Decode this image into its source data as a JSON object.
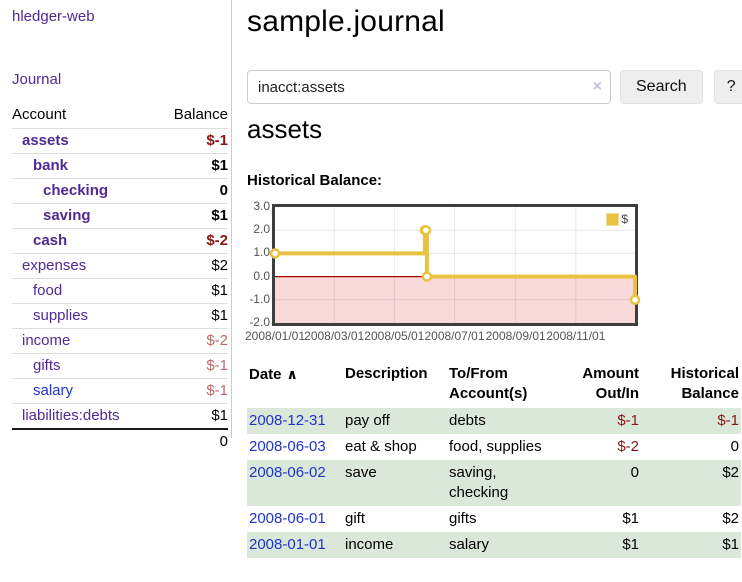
{
  "colors": {
    "link_purple": "#4f2a93",
    "link_blue": "#2233cc",
    "negative_red": "#8b1515",
    "muted_rose": "#bc6a6a",
    "row_stripe_green": "#d9e8d9",
    "chart_line_gold": "#E8C240",
    "chart_negative_pink": "#f9d9d9",
    "chart_zero_line": "#a40000"
  },
  "sidebar": {
    "app_title": "hledger-web",
    "journal_link": "Journal",
    "accounts": {
      "headers": {
        "account": "Account",
        "balance": "Balance"
      },
      "rows": [
        {
          "name": "assets",
          "level": 1,
          "bold": true,
          "link": "purple",
          "balance": "$-1",
          "bal_class": "neg"
        },
        {
          "name": "bank",
          "level": 2,
          "bold": true,
          "link": "purple",
          "balance": "$1",
          "bal_class": "black"
        },
        {
          "name": "checking",
          "level": 3,
          "bold": true,
          "link": "purple",
          "balance": "0",
          "bal_class": "black"
        },
        {
          "name": "saving",
          "level": 3,
          "bold": true,
          "link": "purple",
          "balance": "$1",
          "bal_class": "black"
        },
        {
          "name": "cash",
          "level": 2,
          "bold": true,
          "link": "purple",
          "balance": "$-2",
          "bal_class": "neg"
        },
        {
          "name": "expenses",
          "level": 1,
          "bold": false,
          "link": "purple",
          "balance": "$2",
          "bal_class": "black"
        },
        {
          "name": "food",
          "level": 2,
          "bold": false,
          "link": "purple",
          "balance": "$1",
          "bal_class": "black"
        },
        {
          "name": "supplies",
          "level": 2,
          "bold": false,
          "link": "purple",
          "balance": "$1",
          "bal_class": "black"
        },
        {
          "name": "income",
          "level": 1,
          "bold": false,
          "link": "purple",
          "balance": "$-2",
          "bal_class": "rose"
        },
        {
          "name": "gifts",
          "level": 2,
          "bold": false,
          "link": "purple",
          "balance": "$-1",
          "bal_class": "rose"
        },
        {
          "name": "salary",
          "level": 2,
          "bold": false,
          "link": "blue",
          "balance": "$-1",
          "bal_class": "rose"
        },
        {
          "name": "liabilities:debts",
          "level": 1,
          "bold": false,
          "link": "purple",
          "balance": "$1",
          "bal_class": "black"
        }
      ],
      "total": "0"
    }
  },
  "main": {
    "title": "sample.journal",
    "search": {
      "value": "inacct:assets",
      "clear_icon": "×",
      "search_button": "Search",
      "help_button": "?"
    },
    "account_heading": "assets",
    "chart_title": "Historical Balance:"
  },
  "chart_data": {
    "type": "line",
    "step": true,
    "title": "Historical Balance:",
    "series": [
      {
        "name": "$",
        "color": "#E8C240",
        "points": [
          [
            "2008-01-01",
            1
          ],
          [
            "2008-06-01",
            2
          ],
          [
            "2008-06-02",
            2
          ],
          [
            "2008-06-03",
            0
          ],
          [
            "2008-12-31",
            -1
          ]
        ]
      }
    ],
    "xmin": "2008-01-01",
    "xmax": "2008-12-31",
    "ylim": [
      -2,
      3
    ],
    "y_ticks": [
      3,
      2,
      1,
      0,
      -1,
      -2
    ],
    "x_ticks": [
      "2008/01/01",
      "2008/03/01",
      "2008/05/01",
      "2008/07/01",
      "2008/09/01",
      "2008/11/01"
    ],
    "negative_fill": "#f9d9d9",
    "zero_line_color": "#a40000",
    "grid": true,
    "legend_position": "top-right"
  },
  "transactions": {
    "sort_icon": "∧",
    "headers": [
      {
        "label": "Date"
      },
      {
        "label": "Description"
      },
      {
        "label": "To/From\nAccount(s)"
      },
      {
        "label": "Amount\nOut/In"
      },
      {
        "label": "Historical\nBalance"
      }
    ],
    "rows": [
      {
        "date": "2008-12-31",
        "description": "pay off",
        "accounts": "debts",
        "amount": "$-1",
        "amount_class": "neg",
        "balance": "$-1",
        "bal_class": "neg"
      },
      {
        "date": "2008-06-03",
        "description": "eat & shop",
        "accounts": "food, supplies",
        "amount": "$-2",
        "amount_class": "neg",
        "balance": "0",
        "bal_class": "black"
      },
      {
        "date": "2008-06-02",
        "description": "save",
        "accounts": "saving, checking",
        "amount": "0",
        "amount_class": "black",
        "balance": "$2",
        "bal_class": "black"
      },
      {
        "date": "2008-06-01",
        "description": "gift",
        "accounts": "gifts",
        "amount": "$1",
        "amount_class": "black",
        "balance": "$2",
        "bal_class": "black"
      },
      {
        "date": "2008-01-01",
        "description": "income",
        "accounts": "salary",
        "amount": "$1",
        "amount_class": "black",
        "balance": "$1",
        "bal_class": "black"
      }
    ]
  }
}
